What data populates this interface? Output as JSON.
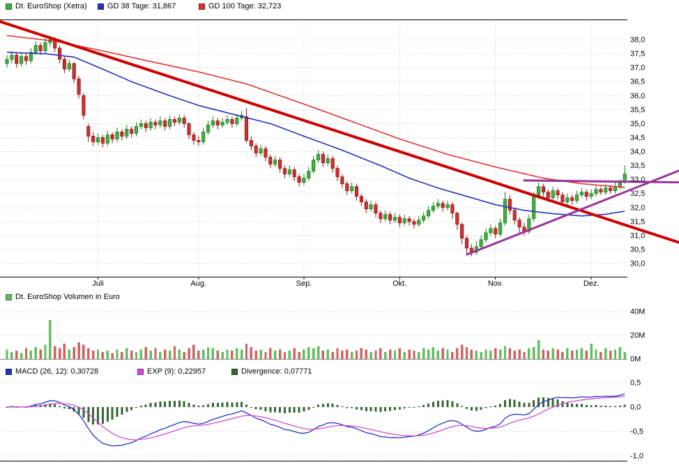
{
  "legends": {
    "price": [
      {
        "label": "Dt. EuroShop (Xetra)",
        "color": "#3cb03c"
      },
      {
        "label": "GD 38 Tage: 31,867",
        "color": "#2233bb"
      },
      {
        "label": "GD 100 Tage: 32,723",
        "color": "#e03030"
      }
    ],
    "volume": [
      {
        "label": "Dt. EuroShop Volumen in Euro",
        "color": "#5fbf5f"
      }
    ],
    "macd": [
      {
        "label": "MACD (26, 12): 0,30728",
        "color": "#2233bb"
      },
      {
        "label": "EXP (9): 0,22957",
        "color": "#d24ad2"
      },
      {
        "label": "Divergence: 0,07771",
        "color": "#336633"
      }
    ]
  },
  "chart_data": [
    {
      "type": "candlestick",
      "title": "Dt. EuroShop (Xetra)",
      "ylim": [
        29.5,
        38.7
      ],
      "y_ticks": [
        {
          "v": 38.0,
          "label": "38,0"
        },
        {
          "v": 37.5,
          "label": "37,5"
        },
        {
          "v": 37.0,
          "label": "37,0"
        },
        {
          "v": 36.5,
          "label": "36,5"
        },
        {
          "v": 36.0,
          "label": "36,0"
        },
        {
          "v": 35.5,
          "label": "35,5"
        },
        {
          "v": 35.0,
          "label": "35,0"
        },
        {
          "v": 34.5,
          "label": "34,5"
        },
        {
          "v": 34.0,
          "label": "34,0"
        },
        {
          "v": 33.5,
          "label": "33,5"
        },
        {
          "v": 33.0,
          "label": "33,0"
        },
        {
          "v": 32.5,
          "label": "32,5"
        },
        {
          "v": 32.0,
          "label": "32,0"
        },
        {
          "v": 31.5,
          "label": "31,5"
        },
        {
          "v": 31.0,
          "label": "31,0"
        },
        {
          "v": 30.5,
          "label": "30,5"
        },
        {
          "v": 30.0,
          "label": "30,0"
        }
      ],
      "x_months": [
        {
          "label": "Juli",
          "index": 19
        },
        {
          "label": "Aug.",
          "index": 40
        },
        {
          "label": "Sep.",
          "index": 62
        },
        {
          "label": "Okt.",
          "index": 82
        },
        {
          "label": "Nov.",
          "index": 102
        },
        {
          "label": "Dez.",
          "index": 122
        }
      ],
      "style": {
        "up_fill": "#44af44",
        "up_stroke": "#187818",
        "down_fill": "#d22f2f",
        "down_stroke": "#8c1414",
        "grid": "#c9c9c9",
        "axis": "#000000"
      },
      "candles": [
        [
          37.15,
          37.45,
          37.0,
          37.3
        ],
        [
          37.3,
          37.6,
          37.15,
          37.45
        ],
        [
          37.45,
          37.55,
          37.0,
          37.15
        ],
        [
          37.15,
          37.55,
          37.05,
          37.4
        ],
        [
          37.4,
          37.5,
          37.1,
          37.25
        ],
        [
          37.25,
          37.7,
          37.15,
          37.55
        ],
        [
          37.55,
          37.95,
          37.45,
          37.8
        ],
        [
          37.8,
          37.9,
          37.45,
          37.6
        ],
        [
          37.6,
          38.05,
          37.5,
          37.9
        ],
        [
          37.9,
          38.15,
          37.75,
          38.0
        ],
        [
          38.0,
          38.1,
          37.55,
          37.7
        ],
        [
          37.7,
          37.8,
          37.15,
          37.3
        ],
        [
          37.3,
          37.4,
          36.8,
          36.95
        ],
        [
          36.95,
          37.3,
          36.85,
          37.15
        ],
        [
          37.15,
          37.2,
          36.45,
          36.6
        ],
        [
          36.6,
          36.7,
          35.9,
          36.05
        ],
        [
          36.0,
          36.1,
          35.15,
          35.3
        ],
        [
          34.9,
          35.0,
          34.35,
          34.55
        ],
        [
          34.55,
          34.7,
          34.2,
          34.35
        ],
        [
          34.35,
          34.65,
          34.25,
          34.5
        ],
        [
          34.5,
          34.6,
          34.15,
          34.3
        ],
        [
          34.3,
          34.75,
          34.2,
          34.6
        ],
        [
          34.6,
          34.7,
          34.3,
          34.45
        ],
        [
          34.45,
          34.85,
          34.35,
          34.7
        ],
        [
          34.7,
          34.8,
          34.4,
          34.55
        ],
        [
          34.55,
          34.95,
          34.45,
          34.8
        ],
        [
          34.8,
          34.9,
          34.5,
          34.65
        ],
        [
          34.65,
          35.05,
          34.55,
          34.9
        ],
        [
          34.9,
          35.15,
          34.8,
          35.0
        ],
        [
          35.0,
          35.1,
          34.7,
          34.85
        ],
        [
          34.85,
          35.2,
          34.75,
          35.05
        ],
        [
          35.05,
          35.15,
          34.8,
          34.95
        ],
        [
          34.95,
          35.25,
          34.85,
          35.1
        ],
        [
          35.1,
          35.2,
          34.75,
          34.9
        ],
        [
          34.9,
          35.3,
          34.8,
          35.15
        ],
        [
          35.15,
          35.25,
          34.9,
          35.05
        ],
        [
          35.05,
          35.35,
          34.95,
          35.2
        ],
        [
          35.2,
          35.3,
          34.85,
          35.0
        ],
        [
          35.0,
          35.05,
          34.45,
          34.6
        ],
        [
          34.6,
          34.7,
          34.25,
          34.4
        ],
        [
          34.4,
          34.55,
          34.2,
          34.35
        ],
        [
          34.35,
          34.85,
          34.25,
          34.7
        ],
        [
          34.7,
          35.1,
          34.6,
          34.95
        ],
        [
          34.95,
          35.25,
          34.85,
          35.1
        ],
        [
          35.1,
          35.2,
          34.8,
          34.95
        ],
        [
          34.95,
          35.2,
          34.85,
          35.05
        ],
        [
          35.05,
          35.3,
          34.95,
          35.15
        ],
        [
          35.15,
          35.25,
          34.85,
          35.0
        ],
        [
          35.0,
          35.35,
          34.9,
          35.2
        ],
        [
          35.2,
          35.45,
          35.1,
          35.3
        ],
        [
          35.25,
          35.55,
          34.3,
          34.4
        ],
        [
          34.4,
          34.55,
          34.05,
          34.2
        ],
        [
          34.2,
          34.3,
          33.8,
          33.95
        ],
        [
          33.95,
          34.25,
          33.85,
          34.1
        ],
        [
          34.1,
          34.2,
          33.65,
          33.8
        ],
        [
          33.8,
          33.9,
          33.4,
          33.55
        ],
        [
          33.55,
          33.85,
          33.45,
          33.7
        ],
        [
          33.7,
          33.8,
          33.25,
          33.4
        ],
        [
          33.4,
          33.5,
          33.05,
          33.2
        ],
        [
          33.2,
          33.5,
          33.1,
          33.35
        ],
        [
          33.35,
          33.45,
          32.95,
          33.1
        ],
        [
          33.1,
          33.2,
          32.75,
          32.9
        ],
        [
          32.9,
          33.2,
          32.8,
          33.05
        ],
        [
          33.05,
          33.45,
          32.95,
          33.3
        ],
        [
          33.3,
          33.85,
          33.2,
          33.7
        ],
        [
          33.7,
          34.05,
          33.6,
          33.9
        ],
        [
          33.9,
          34.0,
          33.45,
          33.6
        ],
        [
          33.6,
          33.9,
          33.5,
          33.75
        ],
        [
          33.75,
          33.85,
          33.25,
          33.4
        ],
        [
          33.4,
          33.5,
          32.95,
          33.1
        ],
        [
          33.1,
          33.2,
          32.7,
          32.85
        ],
        [
          32.85,
          32.95,
          32.45,
          32.6
        ],
        [
          32.6,
          32.9,
          32.5,
          32.75
        ],
        [
          32.75,
          32.85,
          32.25,
          32.4
        ],
        [
          32.4,
          32.5,
          32.05,
          32.2
        ],
        [
          32.2,
          32.3,
          31.8,
          31.95
        ],
        [
          31.95,
          32.25,
          31.85,
          32.1
        ],
        [
          32.1,
          32.2,
          31.65,
          31.8
        ],
        [
          31.8,
          31.9,
          31.45,
          31.6
        ],
        [
          31.6,
          31.9,
          31.5,
          31.75
        ],
        [
          31.75,
          31.85,
          31.4,
          31.55
        ],
        [
          31.55,
          31.8,
          31.45,
          31.65
        ],
        [
          31.65,
          31.75,
          31.3,
          31.45
        ],
        [
          31.45,
          31.75,
          31.35,
          31.6
        ],
        [
          31.6,
          31.7,
          31.35,
          31.5
        ],
        [
          31.5,
          31.6,
          31.25,
          31.4
        ],
        [
          31.4,
          31.7,
          31.3,
          31.55
        ],
        [
          31.55,
          31.85,
          31.45,
          31.7
        ],
        [
          31.7,
          32.05,
          31.6,
          31.9
        ],
        [
          31.9,
          32.2,
          31.8,
          32.05
        ],
        [
          32.05,
          32.3,
          31.95,
          32.15
        ],
        [
          32.15,
          32.25,
          31.85,
          32.0
        ],
        [
          32.0,
          32.25,
          31.9,
          32.1
        ],
        [
          32.1,
          32.2,
          31.6,
          31.8
        ],
        [
          31.8,
          31.85,
          31.2,
          31.4
        ],
        [
          31.4,
          31.45,
          30.7,
          30.9
        ],
        [
          30.9,
          31.0,
          30.35,
          30.55
        ],
        [
          30.55,
          30.7,
          30.25,
          30.4
        ],
        [
          30.4,
          30.8,
          30.3,
          30.6
        ],
        [
          30.6,
          31.0,
          30.5,
          30.85
        ],
        [
          30.85,
          31.25,
          30.75,
          31.1
        ],
        [
          31.1,
          31.4,
          31.0,
          31.25
        ],
        [
          31.25,
          31.35,
          30.9,
          31.05
        ],
        [
          31.05,
          31.6,
          30.95,
          31.45
        ],
        [
          31.45,
          32.55,
          31.35,
          32.3
        ],
        [
          32.3,
          32.45,
          31.75,
          31.9
        ],
        [
          31.9,
          32.0,
          31.4,
          31.55
        ],
        [
          31.55,
          31.65,
          31.1,
          31.3
        ],
        [
          31.3,
          31.45,
          31.0,
          31.15
        ],
        [
          31.15,
          31.75,
          31.05,
          31.6
        ],
        [
          31.6,
          32.55,
          31.5,
          32.4
        ],
        [
          32.4,
          32.9,
          32.3,
          32.75
        ],
        [
          32.75,
          32.85,
          32.4,
          32.55
        ],
        [
          32.55,
          32.65,
          32.2,
          32.35
        ],
        [
          32.35,
          32.75,
          32.25,
          32.6
        ],
        [
          32.6,
          32.7,
          32.3,
          32.45
        ],
        [
          32.45,
          32.55,
          32.05,
          32.2
        ],
        [
          32.2,
          32.5,
          32.1,
          32.35
        ],
        [
          32.35,
          32.45,
          32.1,
          32.25
        ],
        [
          32.25,
          32.6,
          32.15,
          32.45
        ],
        [
          32.45,
          32.7,
          32.35,
          32.55
        ],
        [
          32.55,
          32.65,
          32.25,
          32.4
        ],
        [
          32.4,
          32.65,
          32.3,
          32.5
        ],
        [
          32.5,
          32.8,
          32.4,
          32.65
        ],
        [
          32.65,
          32.75,
          32.45,
          32.55
        ],
        [
          32.55,
          32.85,
          32.45,
          32.7
        ],
        [
          32.7,
          32.8,
          32.5,
          32.6
        ],
        [
          32.6,
          32.9,
          32.5,
          32.75
        ],
        [
          32.75,
          33.0,
          32.65,
          32.9
        ],
        [
          32.9,
          33.5,
          32.85,
          33.2
        ]
      ],
      "overlays": [
        {
          "name": "GD 38 Tage",
          "last_value": "31,867",
          "color": "#2233bb",
          "points": [
            [
              0,
              37.55
            ],
            [
              8,
              37.5
            ],
            [
              14,
              37.38
            ],
            [
              20,
              36.95
            ],
            [
              26,
              36.5
            ],
            [
              34,
              36.0
            ],
            [
              40,
              35.65
            ],
            [
              48,
              35.3
            ],
            [
              55,
              35.0
            ],
            [
              62,
              34.55
            ],
            [
              70,
              34.05
            ],
            [
              78,
              33.5
            ],
            [
              84,
              33.05
            ],
            [
              90,
              32.7
            ],
            [
              96,
              32.4
            ],
            [
              102,
              32.1
            ],
            [
              108,
              31.9
            ],
            [
              114,
              31.78
            ],
            [
              120,
              31.7
            ],
            [
              125,
              31.76
            ],
            [
              129,
              31.87
            ]
          ]
        },
        {
          "name": "GD 100 Tage",
          "last_value": "32,723",
          "color": "#e03030",
          "points": [
            [
              0,
              38.15
            ],
            [
              10,
              37.95
            ],
            [
              20,
              37.6
            ],
            [
              30,
              37.22
            ],
            [
              40,
              36.85
            ],
            [
              50,
              36.42
            ],
            [
              62,
              35.7
            ],
            [
              70,
              35.2
            ],
            [
              82,
              34.45
            ],
            [
              92,
              33.9
            ],
            [
              102,
              33.45
            ],
            [
              112,
              33.05
            ],
            [
              120,
              32.85
            ],
            [
              129,
              32.72
            ]
          ]
        }
      ],
      "trendlines": [
        {
          "name": "downtrend-resistance-line",
          "color": "#cc0000",
          "width": 4,
          "px1": 0,
          "v1": 38.65,
          "px2": 974,
          "v2": 30.75
        },
        {
          "name": "triangle-top-line",
          "color": "#993399",
          "width": 3,
          "px1": 752,
          "v1": 32.97,
          "px2": 974,
          "v2": 32.9
        },
        {
          "name": "triangle-bottom-line",
          "color": "#993399",
          "width": 3,
          "px1": 670,
          "v1": 30.32,
          "px2": 974,
          "v2": 33.32
        }
      ]
    },
    {
      "type": "bar",
      "title": "Dt. EuroShop Volumen in Euro",
      "ylim": [
        0,
        44
      ],
      "y_ticks": [
        {
          "v": 40,
          "label": "40M"
        },
        {
          "v": 20,
          "label": "20M"
        },
        {
          "v": 0,
          "label": "0M"
        }
      ],
      "style": {
        "up": "#5fbf5f",
        "down": "#d45f5f"
      },
      "values_millions": [
        8,
        6,
        7,
        5,
        9,
        7,
        10,
        8,
        12,
        33,
        11,
        9,
        13,
        8,
        10,
        14,
        12,
        9,
        7,
        8,
        6,
        7,
        5,
        8,
        6,
        9,
        7,
        6,
        8,
        10,
        7,
        9,
        6,
        8,
        7,
        11,
        8,
        6,
        9,
        12,
        7,
        8,
        10,
        9,
        7,
        6,
        8,
        7,
        9,
        8,
        13,
        10,
        7,
        8,
        6,
        9,
        7,
        8,
        6,
        7,
        9,
        6,
        8,
        10,
        9,
        11,
        7,
        8,
        6,
        9,
        7,
        8,
        6,
        7,
        9,
        8,
        6,
        7,
        9,
        6,
        8,
        7,
        9,
        6,
        8,
        7,
        6,
        9,
        8,
        10,
        7,
        9,
        8,
        6,
        9,
        12,
        10,
        8,
        7,
        6,
        8,
        7,
        9,
        8,
        11,
        9,
        7,
        8,
        6,
        9,
        10,
        16,
        8,
        7,
        9,
        8,
        6,
        9,
        7,
        8,
        9,
        7,
        13,
        8,
        6,
        9,
        7,
        8,
        10,
        6
      ]
    },
    {
      "type": "line",
      "title": "MACD",
      "ylim": [
        -1.1,
        0.55
      ],
      "params": {
        "fast": 12,
        "slow": 26,
        "signal": 9
      },
      "y_ticks": [
        {
          "v": 0.5,
          "label": "0,5"
        },
        {
          "v": 0.0,
          "label": "0,0"
        },
        {
          "v": -0.5,
          "label": "-0,5"
        },
        {
          "v": -1.0,
          "label": "-1,0"
        }
      ],
      "series": [
        {
          "name": "MACD (26, 12)",
          "last_value": "0,30728",
          "color": "#2233bb"
        },
        {
          "name": "EXP (9)",
          "last_value": "0,22957",
          "color": "#d24ad2"
        },
        {
          "name": "Divergence",
          "last_value": "0,07771",
          "color": "#336633"
        }
      ]
    }
  ]
}
